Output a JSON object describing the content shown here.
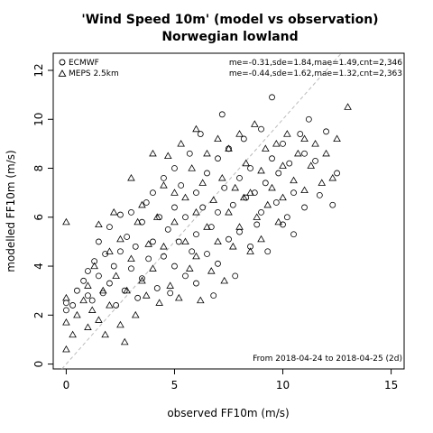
{
  "chart_data": {
    "type": "scatter",
    "title": "'Wind Speed 10m' (model vs observation)",
    "subtitle": "Norwegian lowland",
    "xlabel": "observed FF10m (m/s)",
    "ylabel": "modelled FF10m (m/s)",
    "xlim": [
      -0.6,
      15.6
    ],
    "ylim": [
      -0.2,
      12.7
    ],
    "x_ticks": [
      0,
      5,
      10,
      15
    ],
    "y_ticks": [
      0,
      2,
      4,
      6,
      8,
      10,
      12
    ],
    "x_tick_labels": [
      "0",
      "5",
      "10",
      "15"
    ],
    "y_tick_labels": [
      "0",
      "2",
      "4",
      "6",
      "8",
      "10",
      "12"
    ],
    "grid": false,
    "reference_line": "y = x",
    "legend_position": "top-left",
    "footnote": "From 2018-04-24 to 2018-04-25 (2d)",
    "series": [
      {
        "name": "ECMWF",
        "marker": "circle",
        "stats": "me=-0.31,sde=1.84,mae=1.49,cnt=2,346",
        "points": [
          [
            0,
            2.5
          ],
          [
            0,
            2.2
          ],
          [
            0.3,
            2.4
          ],
          [
            0.5,
            3.0
          ],
          [
            0.8,
            3.4
          ],
          [
            1.0,
            2.8
          ],
          [
            1.0,
            3.8
          ],
          [
            1.2,
            2.6
          ],
          [
            1.3,
            4.2
          ],
          [
            1.5,
            3.6
          ],
          [
            1.5,
            5.0
          ],
          [
            1.7,
            2.9
          ],
          [
            1.8,
            4.5
          ],
          [
            2.0,
            3.3
          ],
          [
            2.0,
            5.6
          ],
          [
            2.2,
            4.0
          ],
          [
            2.3,
            2.4
          ],
          [
            2.5,
            6.1
          ],
          [
            2.5,
            4.6
          ],
          [
            2.7,
            3.0
          ],
          [
            2.8,
            5.2
          ],
          [
            3.0,
            6.2
          ],
          [
            3.0,
            3.9
          ],
          [
            3.2,
            4.8
          ],
          [
            3.3,
            2.7
          ],
          [
            3.5,
            5.8
          ],
          [
            3.5,
            3.5
          ],
          [
            3.7,
            6.6
          ],
          [
            3.8,
            4.3
          ],
          [
            4.0,
            7.0
          ],
          [
            4.0,
            5.0
          ],
          [
            4.2,
            3.1
          ],
          [
            4.3,
            6.0
          ],
          [
            4.5,
            7.6
          ],
          [
            4.5,
            4.4
          ],
          [
            4.7,
            5.5
          ],
          [
            4.8,
            2.9
          ],
          [
            5.0,
            8.0
          ],
          [
            5.0,
            6.4
          ],
          [
            5.0,
            4.0
          ],
          [
            5.2,
            5.0
          ],
          [
            5.3,
            7.3
          ],
          [
            5.5,
            3.6
          ],
          [
            5.5,
            6.0
          ],
          [
            5.7,
            8.6
          ],
          [
            5.8,
            4.6
          ],
          [
            6.0,
            5.3
          ],
          [
            6.0,
            7.0
          ],
          [
            6.0,
            3.3
          ],
          [
            6.2,
            9.4
          ],
          [
            6.3,
            6.4
          ],
          [
            6.5,
            4.5
          ],
          [
            6.5,
            7.8
          ],
          [
            6.7,
            5.6
          ],
          [
            6.8,
            2.8
          ],
          [
            7.0,
            8.4
          ],
          [
            7.0,
            6.2
          ],
          [
            7.0,
            4.1
          ],
          [
            7.2,
            10.2
          ],
          [
            7.3,
            7.2
          ],
          [
            7.5,
            5.1
          ],
          [
            7.5,
            8.8
          ],
          [
            7.7,
            6.5
          ],
          [
            7.8,
            3.6
          ],
          [
            8.0,
            7.6
          ],
          [
            8.0,
            5.4
          ],
          [
            8.2,
            9.2
          ],
          [
            8.3,
            6.8
          ],
          [
            8.5,
            4.8
          ],
          [
            8.5,
            8.0
          ],
          [
            8.7,
            7.0
          ],
          [
            8.8,
            5.7
          ],
          [
            9.0,
            9.6
          ],
          [
            9.0,
            6.2
          ],
          [
            9.2,
            7.4
          ],
          [
            9.3,
            4.6
          ],
          [
            9.5,
            8.4
          ],
          [
            9.5,
            10.9
          ],
          [
            9.7,
            6.6
          ],
          [
            9.8,
            7.8
          ],
          [
            10.0,
            5.7
          ],
          [
            10.0,
            9.0
          ],
          [
            10.2,
            6.0
          ],
          [
            10.3,
            8.2
          ],
          [
            10.5,
            5.3
          ],
          [
            10.5,
            7.0
          ],
          [
            10.8,
            9.4
          ],
          [
            11.0,
            8.6
          ],
          [
            11.0,
            6.4
          ],
          [
            11.2,
            10.0
          ],
          [
            11.5,
            8.3
          ],
          [
            11.7,
            6.9
          ],
          [
            12.0,
            9.5
          ],
          [
            12.3,
            6.5
          ],
          [
            12.5,
            7.8
          ]
        ]
      },
      {
        "name": "MEPS 2.5km",
        "marker": "triangle",
        "stats": "me=-0.44,sde=1.62,mae=1.32,cnt=2,363",
        "points": [
          [
            0,
            5.8
          ],
          [
            0,
            0.6
          ],
          [
            0,
            1.7
          ],
          [
            0,
            2.7
          ],
          [
            0.3,
            1.2
          ],
          [
            0.5,
            2.0
          ],
          [
            0.8,
            2.6
          ],
          [
            1.0,
            1.5
          ],
          [
            1.0,
            3.2
          ],
          [
            1.2,
            2.2
          ],
          [
            1.3,
            4.0
          ],
          [
            1.5,
            1.8
          ],
          [
            1.5,
            5.7
          ],
          [
            1.7,
            3.0
          ],
          [
            1.8,
            1.2
          ],
          [
            2.0,
            4.6
          ],
          [
            2.0,
            2.4
          ],
          [
            2.2,
            6.2
          ],
          [
            2.3,
            3.6
          ],
          [
            2.5,
            1.6
          ],
          [
            2.5,
            5.1
          ],
          [
            2.7,
            0.9
          ],
          [
            2.8,
            3.0
          ],
          [
            3.0,
            7.6
          ],
          [
            3.0,
            4.3
          ],
          [
            3.2,
            2.0
          ],
          [
            3.3,
            5.8
          ],
          [
            3.5,
            3.4
          ],
          [
            3.5,
            6.5
          ],
          [
            3.7,
            2.8
          ],
          [
            3.8,
            4.9
          ],
          [
            4.0,
            8.6
          ],
          [
            4.0,
            3.9
          ],
          [
            4.2,
            6.0
          ],
          [
            4.3,
            2.5
          ],
          [
            4.5,
            7.3
          ],
          [
            4.5,
            4.8
          ],
          [
            4.7,
            8.5
          ],
          [
            4.8,
            3.2
          ],
          [
            5.0,
            5.8
          ],
          [
            5.0,
            7.0
          ],
          [
            5.2,
            2.7
          ],
          [
            5.3,
            9.0
          ],
          [
            5.5,
            5.0
          ],
          [
            5.5,
            6.8
          ],
          [
            5.7,
            3.9
          ],
          [
            5.8,
            8.0
          ],
          [
            6.0,
            4.4
          ],
          [
            6.0,
            6.2
          ],
          [
            6.0,
            9.6
          ],
          [
            6.2,
            2.6
          ],
          [
            6.3,
            7.4
          ],
          [
            6.5,
            5.6
          ],
          [
            6.5,
            8.6
          ],
          [
            6.7,
            3.8
          ],
          [
            6.8,
            6.7
          ],
          [
            7.0,
            9.2
          ],
          [
            7.0,
            5.0
          ],
          [
            7.2,
            7.6
          ],
          [
            7.3,
            3.4
          ],
          [
            7.5,
            6.2
          ],
          [
            7.5,
            8.8
          ],
          [
            7.7,
            4.8
          ],
          [
            7.8,
            7.2
          ],
          [
            8.0,
            9.4
          ],
          [
            8.0,
            5.6
          ],
          [
            8.2,
            6.8
          ],
          [
            8.3,
            8.2
          ],
          [
            8.5,
            4.6
          ],
          [
            8.5,
            7.0
          ],
          [
            8.7,
            9.8
          ],
          [
            8.8,
            6.0
          ],
          [
            9.0,
            7.9
          ],
          [
            9.0,
            5.1
          ],
          [
            9.2,
            8.8
          ],
          [
            9.3,
            6.5
          ],
          [
            9.5,
            7.2
          ],
          [
            9.7,
            9.0
          ],
          [
            9.8,
            5.8
          ],
          [
            10.0,
            8.1
          ],
          [
            10.0,
            6.8
          ],
          [
            10.2,
            9.4
          ],
          [
            10.5,
            7.5
          ],
          [
            10.7,
            8.6
          ],
          [
            11.0,
            7.1
          ],
          [
            11.0,
            9.2
          ],
          [
            11.3,
            8.1
          ],
          [
            11.5,
            9.0
          ],
          [
            11.8,
            7.4
          ],
          [
            12.0,
            8.6
          ],
          [
            12.3,
            7.6
          ],
          [
            12.5,
            9.2
          ],
          [
            13.0,
            10.5
          ]
        ]
      }
    ]
  }
}
